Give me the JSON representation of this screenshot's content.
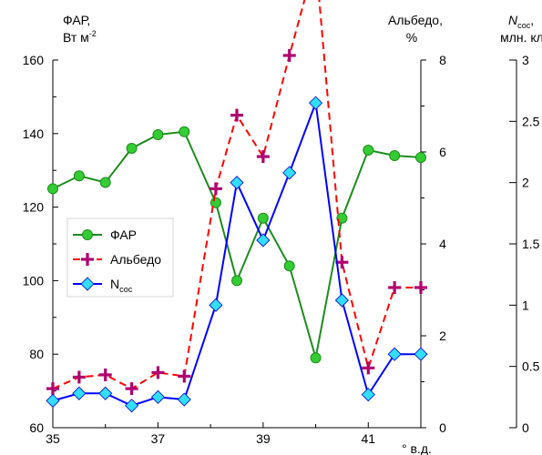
{
  "chart_data": {
    "type": "line",
    "x": [
      35,
      35.5,
      36,
      36.5,
      37,
      37.5,
      38.1,
      38.5,
      39,
      39.5,
      40,
      40.5,
      41,
      41.5,
      42
    ],
    "series": [
      {
        "name": "ФАР",
        "axis": "left",
        "color": "#1e8c1e",
        "fill": "#33cc33",
        "marker": "circle",
        "line": "solid",
        "values": [
          125,
          128.5,
          126.7,
          136,
          139.7,
          140.5,
          121.2,
          100,
          117,
          104,
          79,
          117,
          135.5,
          134,
          133.5
        ]
      },
      {
        "name": "Альбедо",
        "axis": "right1",
        "color": "#ff0000",
        "fill": "#b0006e",
        "marker": "plus",
        "line": "dashed",
        "values": [
          0.85,
          1.1,
          1.15,
          0.85,
          1.2,
          1.12,
          5.2,
          6.8,
          5.9,
          8.1,
          10.2,
          3.6,
          1.3,
          3.05,
          3.05
        ]
      },
      {
        "name": "N",
        "name_sub": "сос",
        "axis": "right2",
        "color": "#0000ff",
        "fill": "#33ddff",
        "marker": "diamond",
        "line": "solid",
        "values": [
          0.22,
          0.28,
          0.28,
          0.18,
          0.25,
          0.23,
          1.0,
          2.0,
          1.53,
          2.08,
          2.65,
          1.04,
          0.27,
          0.6,
          0.6
        ]
      }
    ],
    "xaxis": {
      "ticks": [
        35,
        37,
        39,
        41
      ],
      "range": [
        35,
        42
      ],
      "unit": "° в.д."
    },
    "yaxis_left": {
      "label_line1": "ФАР,",
      "label_line2": "Вт м",
      "label_sup": "-2",
      "ticks": [
        60,
        80,
        100,
        120,
        140,
        160
      ],
      "range": [
        60,
        160
      ]
    },
    "yaxis_right1": {
      "label_line1": "Альбедо,",
      "label_line2": "%",
      "ticks": [
        0,
        2,
        4,
        6,
        8
      ],
      "range": [
        0,
        8
      ]
    },
    "yaxis_right2": {
      "label_italic": "N",
      "label_sub": "сос",
      "label_rest": ",",
      "label_line2": "млн. кл/л",
      "ticks": [
        "0",
        "0.5",
        "1",
        "1.5",
        "2",
        "2.5",
        "3"
      ],
      "range": [
        0,
        3
      ]
    },
    "legend": "center-left",
    "grid": false
  }
}
